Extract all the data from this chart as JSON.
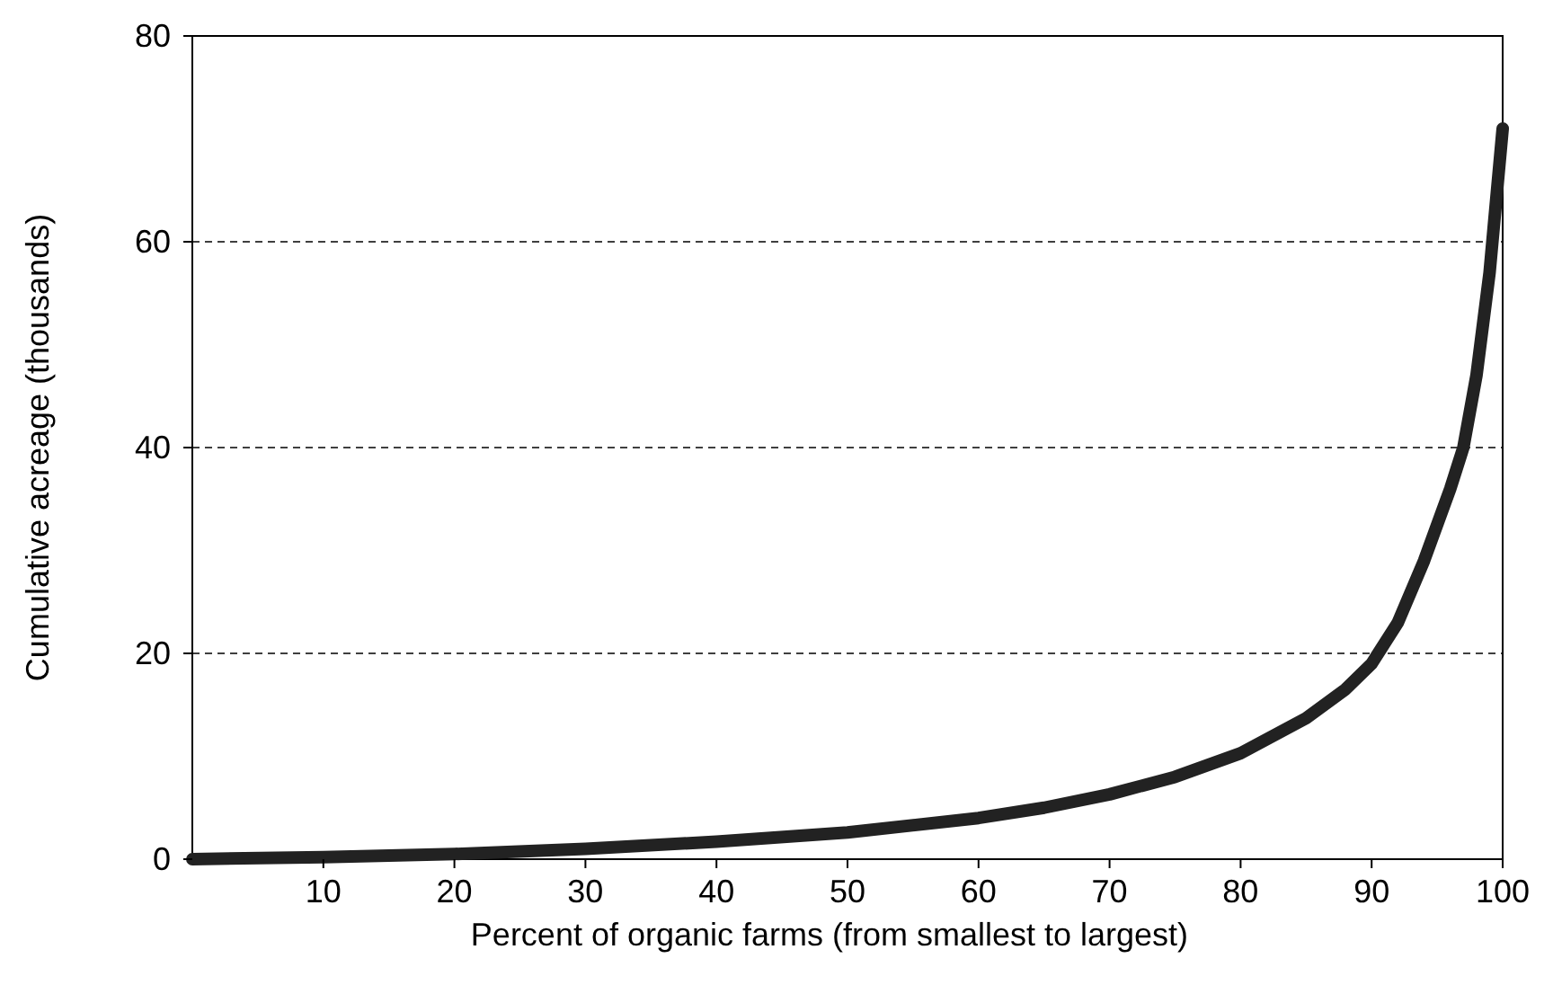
{
  "chart_data": {
    "type": "line",
    "xlabel": "Percent of organic farms (from smallest to largest)",
    "ylabel": "Cumulative acreage (thousands)",
    "xlim": [
      0,
      100
    ],
    "ylim": [
      0,
      80
    ],
    "xticks": [
      10,
      20,
      30,
      40,
      50,
      60,
      70,
      80,
      90,
      100
    ],
    "yticks": [
      0,
      20,
      40,
      60,
      80
    ],
    "grid": "y",
    "line_style": "solid",
    "marker": "none",
    "series": [
      {
        "color": "#222222",
        "x": [
          0,
          10,
          20,
          30,
          40,
          50,
          60,
          65,
          70,
          75,
          80,
          85,
          88,
          90,
          92,
          94,
          96,
          97,
          98,
          99,
          100
        ],
        "values": [
          0,
          0.2,
          0.5,
          1,
          1.7,
          2.6,
          4,
          5,
          6.3,
          8,
          10.3,
          13.7,
          16.5,
          19,
          23,
          29,
          36,
          40,
          47,
          57,
          71
        ]
      }
    ]
  }
}
